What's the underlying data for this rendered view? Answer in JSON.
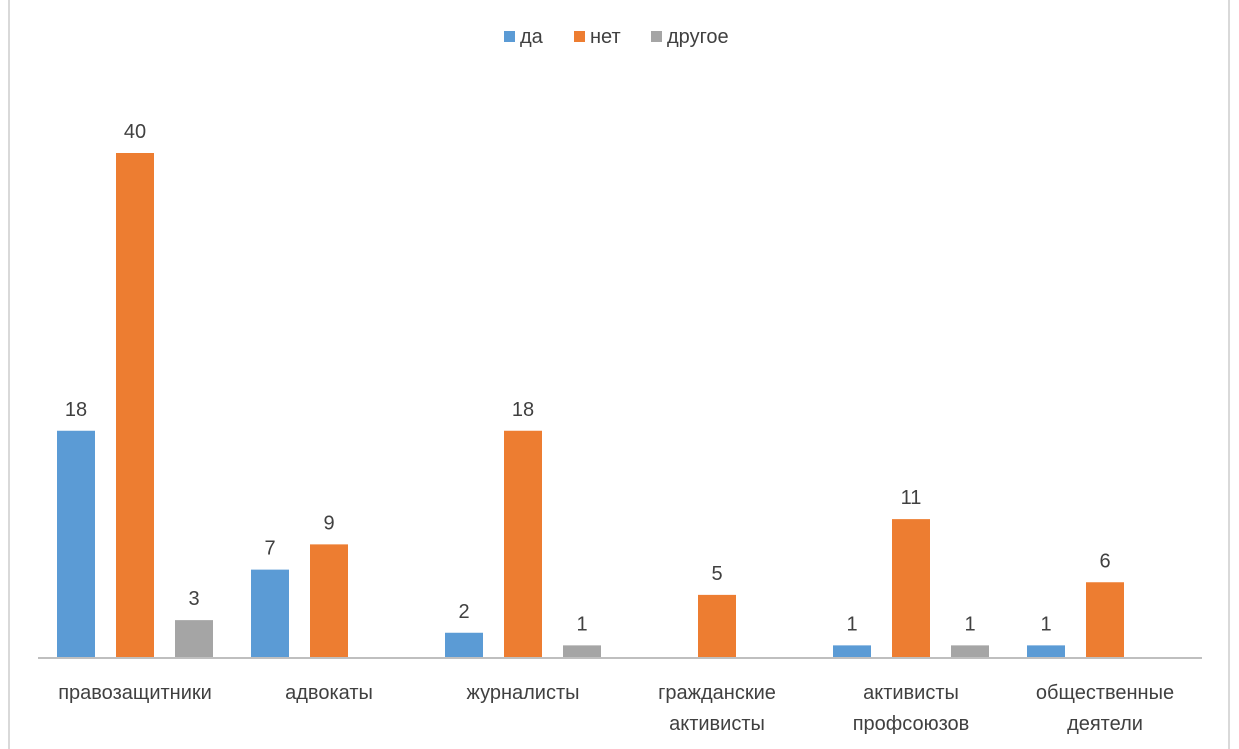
{
  "chart_data": {
    "type": "bar",
    "categories": [
      [
        "правозащитники"
      ],
      [
        "адвокаты"
      ],
      [
        "журналисты"
      ],
      [
        "гражданские",
        "активисты"
      ],
      [
        "активисты",
        "профсоюзов"
      ],
      [
        "общественные",
        "деятели"
      ]
    ],
    "series": [
      {
        "name": "да",
        "color": "#5b9bd5",
        "values": [
          18,
          7,
          2,
          null,
          1,
          1
        ]
      },
      {
        "name": "нет",
        "color": "#ed7d31",
        "values": [
          40,
          9,
          18,
          5,
          11,
          6
        ]
      },
      {
        "name": "другое",
        "color": "#a5a5a5",
        "values": [
          3,
          null,
          1,
          null,
          1,
          null
        ]
      }
    ],
    "title": "",
    "xlabel": "",
    "ylabel": "",
    "ylim": [
      0,
      40
    ],
    "grid": false,
    "legend": "top-center",
    "data_labels": true
  }
}
